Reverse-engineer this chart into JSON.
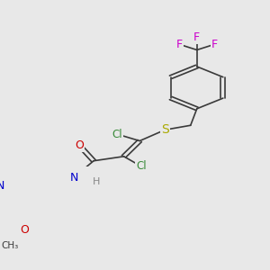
{
  "background_color": "#e8e8e8",
  "bond_color": "#3a3a3a",
  "lw": 1.2,
  "colors": {
    "F": "#cc00cc",
    "S": "#aaaa00",
    "Cl": "#3a8a3a",
    "O": "#cc0000",
    "N": "#0000cc",
    "H": "#888888",
    "C": "#3a3a3a"
  },
  "fs": 9.0
}
